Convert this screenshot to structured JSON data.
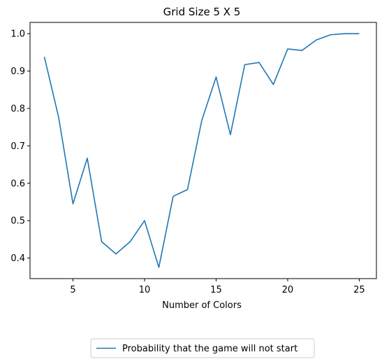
{
  "chart_data": {
    "type": "line",
    "title": "Grid Size 5 X 5",
    "xlabel": "Number of Colors",
    "ylabel": "",
    "xlim": [
      2,
      26.2
    ],
    "ylim": [
      0.345,
      1.03
    ],
    "xticks": [
      5,
      10,
      15,
      20,
      25
    ],
    "yticks": [
      0.4,
      0.5,
      0.6,
      0.7,
      0.8,
      0.9,
      1.0
    ],
    "xtick_labels": [
      "5",
      "10",
      "15",
      "20",
      "25"
    ],
    "ytick_labels": [
      "0.4",
      "0.5",
      "0.6",
      "0.7",
      "0.8",
      "0.9",
      "1.0"
    ],
    "grid": false,
    "legend_position": "below",
    "series": [
      {
        "name": "Probability that the game will not start",
        "color": "#1f77b4",
        "x": [
          3,
          4,
          5,
          6,
          7,
          8,
          9,
          10,
          11,
          12,
          13,
          14,
          15,
          16,
          17,
          18,
          19,
          20,
          21,
          22,
          23,
          24,
          25
        ],
        "y": [
          0.938,
          0.776,
          0.545,
          0.667,
          0.444,
          0.411,
          0.444,
          0.5,
          0.375,
          0.565,
          0.583,
          0.768,
          0.884,
          0.73,
          0.917,
          0.923,
          0.864,
          0.959,
          0.955,
          0.983,
          0.997,
          1.0,
          1.0
        ]
      }
    ]
  }
}
